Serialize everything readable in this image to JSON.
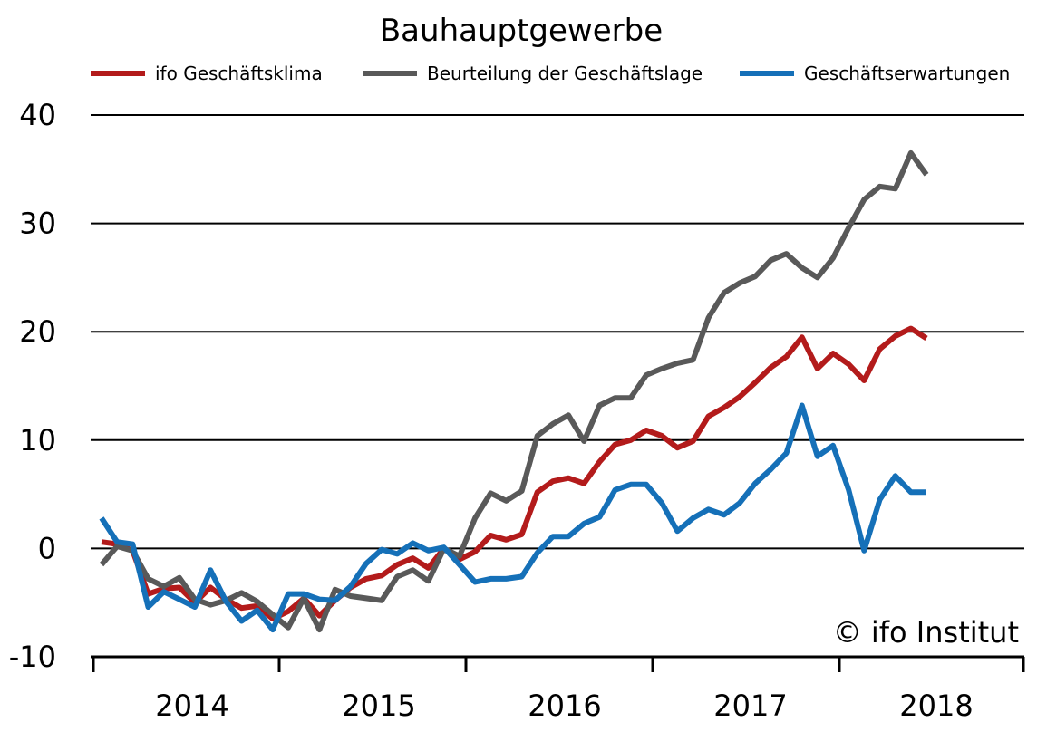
{
  "chart_data": {
    "type": "line",
    "title": "Bauhauptgewerbe",
    "xlabel": "",
    "ylabel": "",
    "ylim": [
      -10,
      40
    ],
    "yticks": [
      "40",
      "30",
      "20",
      "10",
      "0",
      "-10"
    ],
    "xticks": [
      "2014",
      "2015",
      "2016",
      "2017",
      "2018"
    ],
    "legend_position": "top",
    "grid": "horizontal",
    "x_start": "2013-12",
    "x_interval": "monthly",
    "series": [
      {
        "name": "ifo Geschäftsklima",
        "color": "#b31b1b",
        "values": [
          0.6,
          0.4,
          -0.2,
          -4.2,
          -3.7,
          -3.6,
          -5.0,
          -3.6,
          -4.7,
          -5.5,
          -5.3,
          -6.5,
          -5.8,
          -4.6,
          -6.2,
          -4.8,
          -3.6,
          -2.8,
          -2.5,
          -1.5,
          -0.9,
          -1.8,
          0.0,
          -1.0,
          -0.3,
          1.2,
          0.8,
          1.3,
          5.2,
          6.2,
          6.5,
          6.0,
          8.0,
          9.6,
          10.0,
          10.9,
          10.4,
          9.3,
          9.9,
          12.2,
          13.0,
          14.0,
          15.3,
          16.7,
          17.7,
          19.5,
          16.6,
          18.0,
          17.0,
          15.5,
          18.4,
          19.6,
          20.3,
          19.4
        ]
      },
      {
        "name": "Beurteilung der Geschäftslage",
        "color": "#595959",
        "values": [
          -1.5,
          0.2,
          -0.2,
          -2.8,
          -3.5,
          -2.7,
          -4.7,
          -5.2,
          -4.8,
          -4.1,
          -4.9,
          -6.1,
          -7.3,
          -4.6,
          -7.5,
          -3.8,
          -4.4,
          -4.6,
          -4.8,
          -2.6,
          -2.0,
          -3.0,
          0.0,
          -0.7,
          2.8,
          5.1,
          4.4,
          5.3,
          10.4,
          11.5,
          12.3,
          9.9,
          13.2,
          13.9,
          13.9,
          16.0,
          16.6,
          17.1,
          17.4,
          21.3,
          23.6,
          24.5,
          25.1,
          26.6,
          27.2,
          25.9,
          25.0,
          26.8,
          29.6,
          32.2,
          33.4,
          33.2,
          36.5,
          34.5
        ]
      },
      {
        "name": "Geschäftserwartungen",
        "color": "#1570b8",
        "values": [
          2.8,
          0.6,
          0.4,
          -5.4,
          -4.0,
          -4.7,
          -5.4,
          -2.0,
          -4.9,
          -6.7,
          -5.7,
          -7.5,
          -4.2,
          -4.2,
          -4.7,
          -4.8,
          -3.5,
          -1.4,
          -0.1,
          -0.5,
          0.5,
          -0.2,
          0.1,
          -1.5,
          -3.1,
          -2.8,
          -2.8,
          -2.6,
          -0.4,
          1.1,
          1.1,
          2.3,
          2.9,
          5.4,
          5.9,
          5.9,
          4.2,
          1.6,
          2.8,
          3.6,
          3.1,
          4.2,
          6.0,
          7.3,
          8.8,
          13.2,
          8.5,
          9.5,
          5.4,
          -0.2,
          4.5,
          6.7,
          5.2,
          5.2
        ]
      }
    ],
    "annotation": "© ifo Institut"
  }
}
